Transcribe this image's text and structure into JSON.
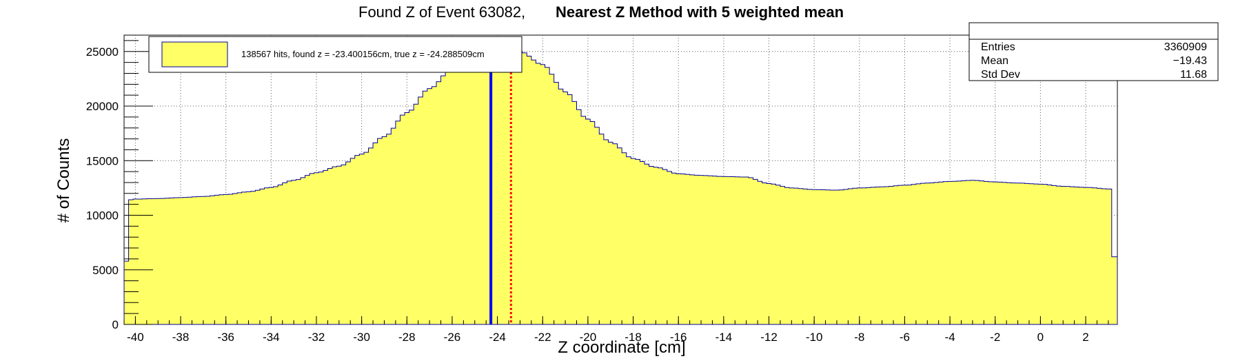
{
  "chart_data": {
    "type": "histogram",
    "title_parts": [
      "Found Z of Event 63082,",
      "Nearest Z Method with 5 weighted mean"
    ],
    "xlabel": "Z coordinate [cm]",
    "ylabel": "# of Counts",
    "xlim": [
      -40.5,
      3.4
    ],
    "ylim": [
      0,
      26500
    ],
    "x_ticks": [
      -40,
      -38,
      -36,
      -34,
      -32,
      -30,
      -28,
      -26,
      -24,
      -22,
      -20,
      -18,
      -16,
      -14,
      -12,
      -10,
      -8,
      -6,
      -4,
      -2,
      0,
      2
    ],
    "y_ticks": [
      0,
      5000,
      10000,
      15000,
      20000,
      25000
    ],
    "grid": true,
    "legend": {
      "entry": "138567 hits, found z = -23.400156cm, true z = -24.288509cm",
      "placement": "top-left"
    },
    "stats": {
      "rows": [
        {
          "label": "Entries",
          "value": "3360909"
        },
        {
          "label": "Mean",
          "value": "−19.43"
        },
        {
          "label": "Std Dev",
          "value": "11.68"
        }
      ]
    },
    "vertical_lines": [
      {
        "x": -24.288509,
        "color": "#0000ff",
        "style": "solid"
      },
      {
        "x": -23.400156,
        "color": "#ff0000",
        "style": "dotted"
      }
    ],
    "colors": {
      "fill": "#ffff66",
      "outline": "#000099"
    },
    "bins": {
      "edges_x": [
        -40.5,
        -40.3,
        3.15,
        3.4
      ],
      "first_bin_value": 5800,
      "last_bin_value": 6200,
      "points": [
        [
          -40.3,
          11400
        ],
        [
          -40.0,
          11480
        ],
        [
          -39.0,
          11530
        ],
        [
          -38.0,
          11620
        ],
        [
          -37.0,
          11720
        ],
        [
          -36.0,
          11900
        ],
        [
          -35.0,
          12150
        ],
        [
          -34.0,
          12550
        ],
        [
          -33.0,
          13200
        ],
        [
          -32.0,
          13900
        ],
        [
          -31.0,
          14500
        ],
        [
          -30.0,
          15600
        ],
        [
          -29.0,
          17200
        ],
        [
          -28.0,
          19400
        ],
        [
          -27.0,
          21600
        ],
        [
          -26.0,
          23400
        ],
        [
          -25.0,
          24600
        ],
        [
          -24.0,
          25200
        ],
        [
          -23.5,
          25300
        ],
        [
          -23.0,
          25000
        ],
        [
          -22.0,
          23800
        ],
        [
          -21.0,
          21300
        ],
        [
          -20.0,
          18800
        ],
        [
          -19.0,
          16700
        ],
        [
          -18.0,
          15200
        ],
        [
          -17.0,
          14400
        ],
        [
          -16.0,
          13800
        ],
        [
          -15.0,
          13650
        ],
        [
          -14.0,
          13550
        ],
        [
          -13.0,
          13500
        ],
        [
          -12.0,
          12900
        ],
        [
          -11.0,
          12500
        ],
        [
          -10.0,
          12350
        ],
        [
          -9.0,
          12300
        ],
        [
          -8.0,
          12500
        ],
        [
          -7.0,
          12600
        ],
        [
          -6.0,
          12750
        ],
        [
          -5.0,
          12950
        ],
        [
          -4.0,
          13100
        ],
        [
          -3.0,
          13200
        ],
        [
          -2.0,
          13050
        ],
        [
          -1.0,
          12950
        ],
        [
          0.0,
          12850
        ],
        [
          1.0,
          12650
        ],
        [
          2.0,
          12550
        ],
        [
          3.15,
          12400
        ]
      ]
    }
  }
}
